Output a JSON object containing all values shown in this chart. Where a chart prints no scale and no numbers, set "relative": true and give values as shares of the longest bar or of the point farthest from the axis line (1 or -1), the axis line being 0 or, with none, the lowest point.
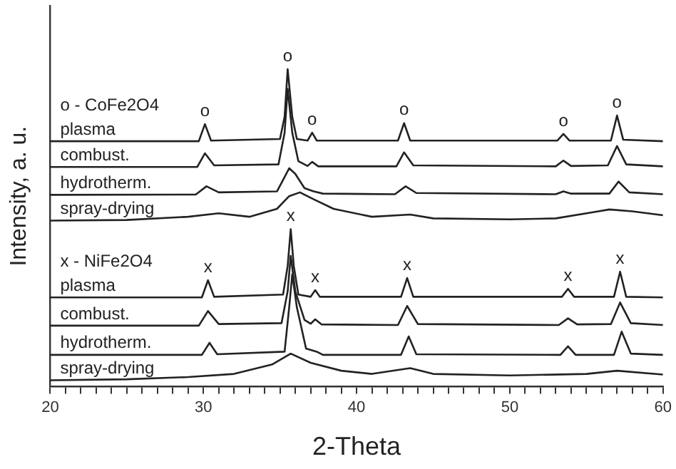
{
  "chart_data": {
    "type": "line",
    "relative": true,
    "xlabel": "2-Theta",
    "ylabel": "Intensity, a. u.",
    "xlim": [
      20,
      60
    ],
    "xticks": [
      20,
      {
        "value": 21,
        "label": null
      },
      {
        "value": 22,
        "label": null
      },
      {
        "value": 23,
        "label": null
      },
      {
        "value": 24,
        "label": null
      },
      {
        "value": 25,
        "label": null
      },
      {
        "value": 26,
        "label": null
      },
      {
        "value": 27,
        "label": null
      },
      {
        "value": 28,
        "label": null
      },
      {
        "value": 29,
        "label": null
      },
      30,
      {
        "value": 31,
        "label": null
      },
      {
        "value": 32,
        "label": null
      },
      {
        "value": 33,
        "label": null
      },
      {
        "value": 34,
        "label": null
      },
      {
        "value": 35,
        "label": null
      },
      {
        "value": 36,
        "label": null
      },
      {
        "value": 37,
        "label": null
      },
      {
        "value": 38,
        "label": null
      },
      {
        "value": 39,
        "label": null
      },
      40,
      {
        "value": 41,
        "label": null
      },
      {
        "value": 42,
        "label": null
      },
      {
        "value": 43,
        "label": null
      },
      {
        "value": 44,
        "label": null
      },
      {
        "value": 45,
        "label": null
      },
      {
        "value": 46,
        "label": null
      },
      {
        "value": 47,
        "label": null
      },
      {
        "value": 48,
        "label": null
      },
      {
        "value": 49,
        "label": null
      },
      50,
      {
        "value": 51,
        "label": null
      },
      {
        "value": 52,
        "label": null
      },
      {
        "value": 53,
        "label": null
      },
      {
        "value": 54,
        "label": null
      },
      {
        "value": 55,
        "label": null
      },
      {
        "value": 56,
        "label": null
      },
      {
        "value": 57,
        "label": null
      },
      {
        "value": 58,
        "label": null
      },
      {
        "value": 59,
        "label": null
      },
      60
    ],
    "legend": false,
    "grid": false,
    "marker": "none",
    "line_style": "solid",
    "series": [
      {
        "name": "plasma",
        "color": "#222222",
        "x": [
          20,
          29.7,
          30.1,
          30.5,
          35.0,
          35.3,
          35.5,
          35.8,
          36.1,
          36.8,
          37.1,
          37.4,
          42.7,
          43.1,
          43.5,
          53.1,
          53.5,
          53.9,
          56.6,
          57.0,
          57.4,
          60
        ],
        "values": [
          0.773,
          0.773,
          0.827,
          0.775,
          0.78,
          0.85,
          1.0,
          0.85,
          0.78,
          0.775,
          0.8,
          0.775,
          0.775,
          0.83,
          0.775,
          0.775,
          0.796,
          0.775,
          0.775,
          0.854,
          0.778,
          0.773
        ]
      },
      {
        "name": "combust.",
        "color": "#222222",
        "x": [
          20,
          29.6,
          30.1,
          30.7,
          34.9,
          35.3,
          35.5,
          35.8,
          36.2,
          36.8,
          37.1,
          37.5,
          42.6,
          43.1,
          43.7,
          53.0,
          53.5,
          54.0,
          56.4,
          57.0,
          57.6,
          60
        ],
        "values": [
          0.692,
          0.692,
          0.735,
          0.697,
          0.7,
          0.8,
          0.938,
          0.8,
          0.71,
          0.695,
          0.708,
          0.694,
          0.694,
          0.738,
          0.697,
          0.694,
          0.712,
          0.695,
          0.697,
          0.758,
          0.7,
          0.694
        ]
      },
      {
        "name": "hydrotherm.",
        "color": "#222222",
        "x": [
          20,
          29.5,
          30.2,
          31.0,
          34.8,
          35.3,
          35.6,
          36.0,
          36.6,
          37.2,
          37.8,
          42.5,
          43.2,
          43.9,
          53.0,
          53.5,
          54.0,
          56.5,
          57.1,
          57.8,
          60
        ],
        "values": [
          0.604,
          0.605,
          0.631,
          0.612,
          0.615,
          0.66,
          0.688,
          0.67,
          0.625,
          0.615,
          0.608,
          0.606,
          0.631,
          0.61,
          0.606,
          0.615,
          0.608,
          0.608,
          0.646,
          0.612,
          0.606
        ]
      },
      {
        "name": "spray-drying",
        "color": "#222222",
        "x": [
          20,
          25,
          29,
          31,
          33,
          34.8,
          35.6,
          36.3,
          37.2,
          38.5,
          41,
          43.5,
          45,
          50,
          53,
          55.5,
          56.5,
          58,
          60
        ],
        "values": [
          0.523,
          0.525,
          0.535,
          0.546,
          0.535,
          0.56,
          0.6,
          0.612,
          0.59,
          0.56,
          0.535,
          0.542,
          0.53,
          0.527,
          0.53,
          0.55,
          0.558,
          0.552,
          0.54
        ]
      },
      {
        "name": "plasma",
        "color": "#222222",
        "x": [
          20,
          29.9,
          30.3,
          30.7,
          35.2,
          35.5,
          35.7,
          35.9,
          36.2,
          37.0,
          37.3,
          37.6,
          42.9,
          43.3,
          43.7,
          53.4,
          53.8,
          54.2,
          56.8,
          57.2,
          57.6,
          60
        ],
        "values": [
          0.281,
          0.281,
          0.335,
          0.283,
          0.29,
          0.38,
          0.496,
          0.38,
          0.29,
          0.283,
          0.304,
          0.283,
          0.283,
          0.342,
          0.283,
          0.283,
          0.308,
          0.283,
          0.283,
          0.362,
          0.283,
          0.281
        ]
      },
      {
        "name": "combust.",
        "color": "#222222",
        "x": [
          20,
          29.7,
          30.3,
          31.0,
          35.1,
          35.5,
          35.7,
          36.0,
          36.6,
          37.0,
          37.3,
          37.7,
          42.7,
          43.3,
          44.0,
          53.2,
          53.8,
          54.4,
          56.6,
          57.2,
          57.9,
          60
        ],
        "values": [
          0.192,
          0.192,
          0.238,
          0.197,
          0.2,
          0.3,
          0.412,
          0.3,
          0.21,
          0.198,
          0.212,
          0.196,
          0.194,
          0.254,
          0.197,
          0.194,
          0.215,
          0.196,
          0.197,
          0.265,
          0.2,
          0.194
        ]
      },
      {
        "name": "hydrotherm.",
        "color": "#222222",
        "x": [
          20,
          29.9,
          30.4,
          30.9,
          35.3,
          35.6,
          35.8,
          36.1,
          36.7,
          37.4,
          37.8,
          42.9,
          43.4,
          43.9,
          53.3,
          53.8,
          54.3,
          56.8,
          57.3,
          57.9,
          60
        ],
        "values": [
          0.1,
          0.1,
          0.138,
          0.102,
          0.11,
          0.25,
          0.354,
          0.25,
          0.12,
          0.11,
          0.1,
          0.1,
          0.158,
          0.102,
          0.1,
          0.127,
          0.1,
          0.1,
          0.173,
          0.104,
          0.1
        ]
      },
      {
        "name": "spray-drying",
        "color": "#222222",
        "x": [
          20,
          25,
          29,
          32,
          34.5,
          35.7,
          37,
          39,
          41,
          43.5,
          45,
          50,
          55,
          57,
          60
        ],
        "values": [
          0.02,
          0.023,
          0.03,
          0.04,
          0.07,
          0.104,
          0.075,
          0.05,
          0.04,
          0.058,
          0.04,
          0.035,
          0.04,
          0.05,
          0.038
        ]
      }
    ],
    "annotations": [
      "o - CoFe2O4",
      "x - NiFe2O4",
      {
        "text": "o",
        "x": 30.1,
        "y": 0.827
      },
      {
        "text": "o",
        "x": 35.5,
        "y": 1.0
      },
      {
        "text": "o",
        "x": 37.1,
        "y": 0.8
      },
      {
        "text": "o",
        "x": 43.1,
        "y": 0.83
      },
      {
        "text": "o",
        "x": 53.5,
        "y": 0.796
      },
      {
        "text": "o",
        "x": 57.0,
        "y": 0.854
      },
      {
        "text": "x",
        "x": 30.3,
        "y": 0.335
      },
      {
        "text": "x",
        "x": 35.7,
        "y": 0.496
      },
      {
        "text": "x",
        "x": 37.3,
        "y": 0.304
      },
      {
        "text": "x",
        "x": 43.3,
        "y": 0.342
      },
      {
        "text": "x",
        "x": 53.8,
        "y": 0.308
      },
      {
        "text": "x",
        "x": 57.2,
        "y": 0.362
      }
    ]
  }
}
